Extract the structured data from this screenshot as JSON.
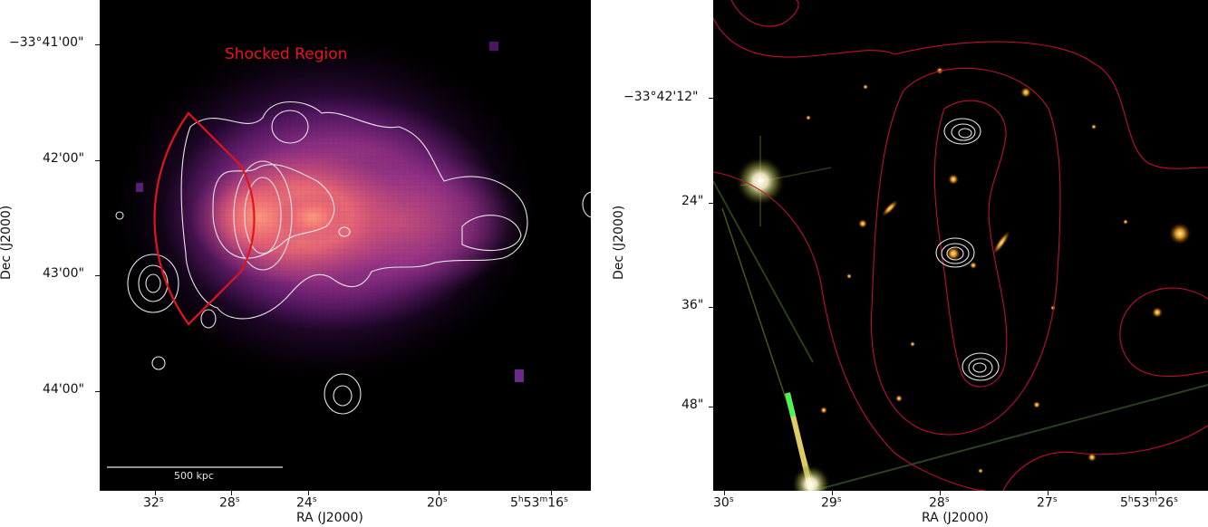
{
  "left_panel": {
    "annotation": "Shocked Region",
    "scale_bar_label": "500 kpc",
    "x_ticks": [
      {
        "main": "32",
        "sup": "s"
      },
      {
        "main": "28",
        "sup": "s"
      },
      {
        "main": "24",
        "sup": "s"
      },
      {
        "main": "20",
        "sup": "s"
      },
      {
        "main": "5",
        "sup": "h",
        "main2": "53",
        "sup2": "m",
        "main3": "16",
        "sup3": "s"
      }
    ],
    "y_ticks": [
      "−33°41'00\"",
      "42'00\"",
      "43'00\"",
      "44'00\""
    ],
    "xlabel": "RA (J2000)",
    "ylabel": "Dec (J2000)"
  },
  "right_panel": {
    "x_ticks": [
      {
        "main": "30",
        "sup": "s"
      },
      {
        "main": "29",
        "sup": "s"
      },
      {
        "main": "28",
        "sup": "s"
      },
      {
        "main": "27",
        "sup": "s"
      },
      {
        "main": "5",
        "sup": "h",
        "main2": "53",
        "sup2": "m",
        "main3": "26",
        "sup3": "s"
      }
    ],
    "y_ticks": [
      "−33°42'12\"",
      "24\"",
      "36\"",
      "48\""
    ],
    "xlabel": "RA (J2000)",
    "ylabel": "Dec (J2000)"
  },
  "colors": {
    "contour_white": "#e6e6e6",
    "contour_red": "#c0102a",
    "shock_region": "#e0141c",
    "annotation": "#e8141c"
  }
}
